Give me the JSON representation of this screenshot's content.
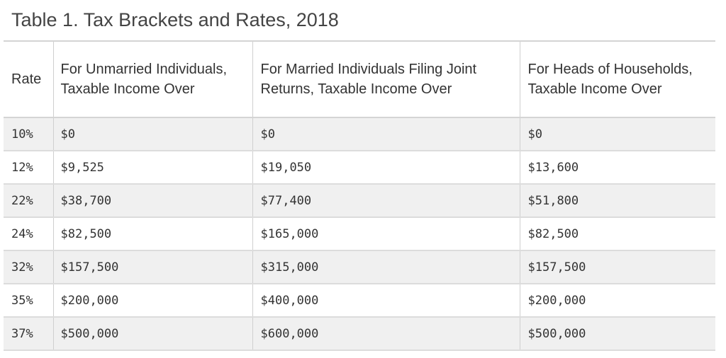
{
  "title": "Table 1. Tax Brackets and Rates, 2018",
  "table": {
    "headers": [
      "Rate",
      "For Unmarried Individuals, Taxable Income Over",
      "For Married Individuals Filing Joint Returns, Taxable Income Over",
      "For Heads of Households, Taxable Income Over"
    ],
    "rows": [
      {
        "rate": "10%",
        "single": "$0",
        "joint": "$0",
        "head": "$0"
      },
      {
        "rate": "12%",
        "single": "$9,525",
        "joint": "$19,050",
        "head": "$13,600"
      },
      {
        "rate": "22%",
        "single": "$38,700",
        "joint": "$77,400",
        "head": "$51,800"
      },
      {
        "rate": "24%",
        "single": "$82,500",
        "joint": "$165,000",
        "head": "$82,500"
      },
      {
        "rate": "32%",
        "single": "$157,500",
        "joint": "$315,000",
        "head": "$157,500"
      },
      {
        "rate": "35%",
        "single": "$200,000",
        "joint": "$400,000",
        "head": "$200,000"
      },
      {
        "rate": "37%",
        "single": "$500,000",
        "joint": "$600,000",
        "head": "$500,000"
      }
    ]
  }
}
